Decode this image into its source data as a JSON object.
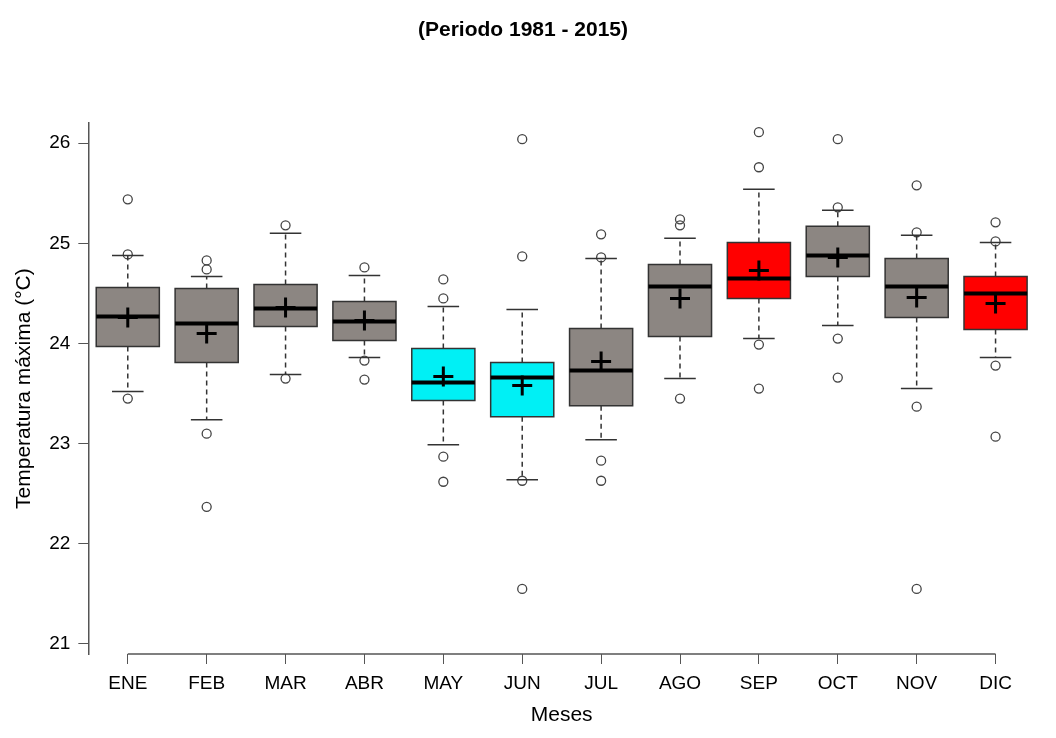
{
  "chart_data": {
    "type": "box",
    "title": "(Periodo 1981 - 2015)",
    "xlabel": "Meses",
    "ylabel": "Temperatura máxima (°C)",
    "categories": [
      "ENE",
      "FEB",
      "MAR",
      "ABR",
      "MAY",
      "JUN",
      "JUL",
      "AGO",
      "SEP",
      "OCT",
      "NOV",
      "DIC"
    ],
    "colors": [
      "#8c8682",
      "#8c8682",
      "#8c8682",
      "#8c8682",
      "#00f0f5",
      "#00f0f5",
      "#8c8682",
      "#8c8682",
      "#ff0000",
      "#8c8682",
      "#8c8682",
      "#ff0000"
    ],
    "boxes": [
      {
        "low": 23.52,
        "q1": 23.97,
        "median": 24.27,
        "q3": 24.56,
        "high": 24.88,
        "mean": 24.26,
        "outliers": [
          25.44,
          24.89,
          23.45
        ]
      },
      {
        "low": 23.24,
        "q1": 23.81,
        "median": 24.2,
        "q3": 24.55,
        "high": 24.67,
        "mean": 24.1,
        "outliers": [
          24.83,
          24.74,
          23.1,
          22.37
        ]
      },
      {
        "low": 23.69,
        "q1": 24.17,
        "median": 24.35,
        "q3": 24.59,
        "high": 25.1,
        "mean": 24.36,
        "outliers": [
          25.18,
          23.65
        ]
      },
      {
        "low": 23.86,
        "q1": 24.03,
        "median": 24.22,
        "q3": 24.42,
        "high": 24.68,
        "mean": 24.23,
        "outliers": [
          24.76,
          23.83,
          23.64
        ]
      },
      {
        "low": 22.99,
        "q1": 23.43,
        "median": 23.61,
        "q3": 23.95,
        "high": 24.37,
        "mean": 23.67,
        "outliers": [
          24.64,
          24.45,
          22.87,
          22.62
        ]
      },
      {
        "low": 22.64,
        "q1": 23.27,
        "median": 23.66,
        "q3": 23.81,
        "high": 24.34,
        "mean": 23.58,
        "outliers": [
          26.04,
          24.87,
          22.63,
          21.55
        ]
      },
      {
        "low": 23.04,
        "q1": 23.38,
        "median": 23.73,
        "q3": 24.15,
        "high": 24.85,
        "mean": 23.82,
        "outliers": [
          25.09,
          24.86,
          22.83,
          22.63
        ]
      },
      {
        "low": 23.65,
        "q1": 24.07,
        "median": 24.57,
        "q3": 24.79,
        "high": 25.05,
        "mean": 24.45,
        "outliers": [
          25.24,
          25.18,
          23.45
        ]
      },
      {
        "low": 24.05,
        "q1": 24.45,
        "median": 24.65,
        "q3": 25.01,
        "high": 25.54,
        "mean": 24.73,
        "outliers": [
          26.11,
          25.76,
          23.99,
          23.55
        ]
      },
      {
        "low": 24.18,
        "q1": 24.67,
        "median": 24.88,
        "q3": 25.17,
        "high": 25.33,
        "mean": 24.86,
        "outliers": [
          26.04,
          25.36,
          24.05,
          23.66
        ]
      },
      {
        "low": 23.55,
        "q1": 24.26,
        "median": 24.57,
        "q3": 24.85,
        "high": 25.08,
        "mean": 24.46,
        "outliers": [
          25.58,
          25.11,
          23.37,
          21.55
        ]
      },
      {
        "low": 23.86,
        "q1": 24.14,
        "median": 24.5,
        "q3": 24.67,
        "high": 25.01,
        "mean": 24.4,
        "outliers": [
          25.21,
          25.02,
          23.78,
          23.07
        ]
      }
    ],
    "ylim": [
      20.9,
      26.2
    ],
    "yticks": [
      21,
      22,
      23,
      24,
      25,
      26
    ],
    "grid": false,
    "legend": false
  }
}
